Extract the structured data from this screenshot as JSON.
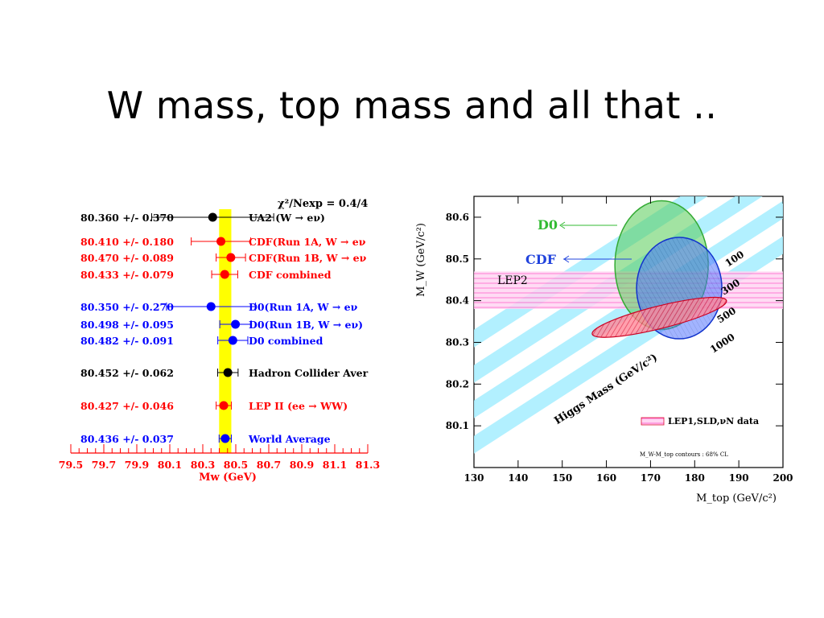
{
  "slide": {
    "title": "W mass, top mass and all that .."
  },
  "chart_data": [
    {
      "type": "scatter",
      "chart": "W mass measurements",
      "chi2_label": "χ²/Nexp = 0.4/4",
      "xlabel": "Mw (GeV)",
      "xticks": [
        "79.5",
        "79.7",
        "79.9",
        "80.1",
        "80.3",
        "80.5",
        "80.7",
        "80.9",
        "81.1",
        "81.3"
      ],
      "xlim": [
        79.5,
        81.3
      ],
      "world_average_band": {
        "center": 80.436,
        "error": 0.037,
        "color": "#ffff00"
      },
      "measurements": [
        {
          "value_text": "80.360 +/- 0.370",
          "label": "UA2 (W → eν)",
          "value": 80.36,
          "error": 0.37,
          "color": "#000000",
          "group": 0
        },
        {
          "value_text": "80.410 +/- 0.180",
          "label": "CDF(Run 1A, W → eν",
          "value": 80.41,
          "error": 0.18,
          "color": "#ff0000",
          "group": 1
        },
        {
          "value_text": "80.470 +/- 0.089",
          "label": "CDF(Run 1B, W → eν",
          "value": 80.47,
          "error": 0.089,
          "color": "#ff0000",
          "group": 1
        },
        {
          "value_text": "80.433 +/- 0.079",
          "label": "CDF combined",
          "value": 80.433,
          "error": 0.079,
          "color": "#ff0000",
          "group": 1
        },
        {
          "value_text": "80.350 +/- 0.270",
          "label": "D0(Run 1A,  W → eν",
          "value": 80.35,
          "error": 0.27,
          "color": "#0000ff",
          "group": 2
        },
        {
          "value_text": "80.498 +/- 0.095",
          "label": "D0(Run 1B, W → eν)",
          "value": 80.498,
          "error": 0.095,
          "color": "#0000ff",
          "group": 2
        },
        {
          "value_text": "80.482 +/- 0.091",
          "label": "D0 combined",
          "value": 80.482,
          "error": 0.091,
          "color": "#0000ff",
          "group": 2
        },
        {
          "value_text": "80.452 +/- 0.062",
          "label": "Hadron Collider Aver",
          "value": 80.452,
          "error": 0.062,
          "color": "#000000",
          "group": 3
        },
        {
          "value_text": "80.427 +/- 0.046",
          "label": "LEP II (ee → WW)",
          "value": 80.427,
          "error": 0.046,
          "color": "#ff0000",
          "group": 4
        },
        {
          "value_text": "80.436 +/- 0.037",
          "label": "World Average",
          "value": 80.436,
          "error": 0.037,
          "color": "#0000ff",
          "group": 5
        }
      ]
    },
    {
      "type": "scatter",
      "chart": "W mass vs top mass contours",
      "xlabel": "M_top (GeV/c²)",
      "ylabel": "M_W (GeV/c²)",
      "xlim": [
        130,
        200
      ],
      "ylim": [
        80.0,
        80.65
      ],
      "xticks": [
        "130",
        "140",
        "150",
        "160",
        "170",
        "180",
        "190",
        "200"
      ],
      "yticks": [
        "80.1",
        "80.2",
        "80.3",
        "80.4",
        "80.5",
        "80.6"
      ],
      "higgs_bands": {
        "title": "Higgs Mass (GeV/c²)",
        "masses": [
          "100",
          "300",
          "500",
          "1000"
        ],
        "color": "#aaeeff"
      },
      "lep2_band": {
        "label": "LEP2",
        "ymin": 80.38,
        "ymax": 80.47,
        "color": "#ff99dd"
      },
      "contours": [
        {
          "name": "D0",
          "center_mtop": 172.5,
          "center_mw": 80.48,
          "color": "#55cc55"
        },
        {
          "name": "CDF",
          "center_mtop": 176.0,
          "center_mw": 80.42,
          "color": "#3355ff"
        },
        {
          "name": "LEP1,SLD,νN data",
          "center_mtop": 172.0,
          "center_mw": 80.36,
          "color": "#ff5566"
        }
      ],
      "legend_label": "LEP1,SLD,νN data",
      "footnote": "M_W-M_top contours : 68% CL"
    }
  ]
}
